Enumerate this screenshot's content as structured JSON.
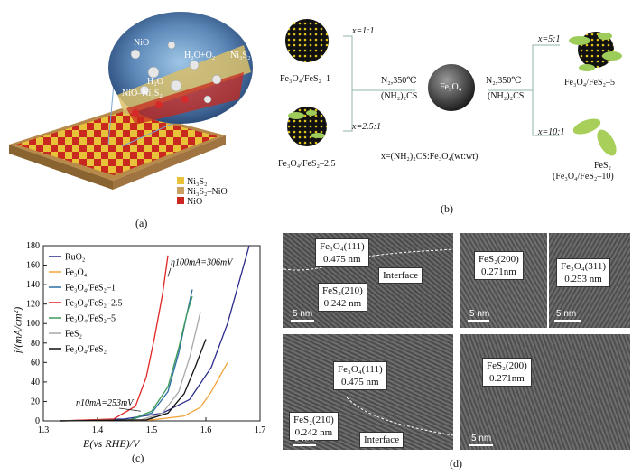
{
  "panel_a": {
    "caption": "(a)",
    "labels": {
      "nio": "NiO",
      "h2o_o2": "H₂O+O₂",
      "ni3s2_top": "Ni₃S₂",
      "h2o": "H₂O",
      "nio_ni3s2": "NiO–Ni₃S₂"
    },
    "legend": [
      "Ni₃S₂",
      "Ni₃S₂–NiO",
      "NiO"
    ],
    "colors": {
      "red": "#c8281e",
      "yellow": "#e8c33a",
      "tan": "#c9a060"
    }
  },
  "panel_b": {
    "caption": "(b)",
    "center": "Fe₃O₄",
    "ratio_def": "x=(NH₂)₂CS:Fe₃O₄(wt:wt)",
    "cond_left_1": "N₂,350℃",
    "cond_left_2": "(NH₂)₂CS",
    "cond_right_1": "N₂,350℃",
    "cond_right_2": "(NH₂)₂CS",
    "x11": "x=1:1",
    "x251": "x=2.5:1",
    "x51": "x=5:1",
    "x101": "x=10:1",
    "p1": "Fe₃O₄/FeS₂–1",
    "p25": "Fe₃O₄/FeS₂–2.5",
    "p5": "Fe₃O₄/FeS₂–5",
    "p10a": "FeS₂",
    "p10b": "(Fe₃O₄/FeS₂–10)"
  },
  "panel_c": {
    "caption": "(c)",
    "chart_data": {
      "type": "line",
      "xlabel": "E(vs RHE)/V",
      "ylabel": "j/(mA/cm²)",
      "xlim": [
        1.3,
        1.7
      ],
      "ylim": [
        0,
        180
      ],
      "xticks": [
        "1.3",
        "1.4",
        "1.5",
        "1.6",
        "1.7"
      ],
      "yticks": [
        "0",
        "20",
        "40",
        "60",
        "80",
        "100",
        "120",
        "140",
        "160",
        "180"
      ],
      "annotations": [
        {
          "text": "η100mA=306mV"
        },
        {
          "text": "η10mA=253mV"
        }
      ],
      "series": [
        {
          "name": "RuO₂",
          "color": "#2b2b8c",
          "x": [
            1.33,
            1.45,
            1.52,
            1.57,
            1.61,
            1.64,
            1.66,
            1.68
          ],
          "y": [
            0,
            2,
            8,
            22,
            55,
            100,
            140,
            180
          ]
        },
        {
          "name": "Fe₃O₄",
          "color": "#f2a43a",
          "x": [
            1.33,
            1.5,
            1.56,
            1.59,
            1.61,
            1.625,
            1.64
          ],
          "y": [
            0,
            1,
            5,
            14,
            30,
            45,
            60
          ]
        },
        {
          "name": "Fe₃O₄/FeS₂–1",
          "color": "#2e6ea0",
          "x": [
            1.33,
            1.46,
            1.5,
            1.53,
            1.55,
            1.565,
            1.575
          ],
          "y": [
            0,
            1,
            8,
            30,
            70,
            110,
            135
          ]
        },
        {
          "name": "Fe₃O₄/FeS₂–2.5",
          "color": "#e02424",
          "x": [
            1.33,
            1.43,
            1.47,
            1.49,
            1.505,
            1.52,
            1.53
          ],
          "y": [
            0,
            2,
            15,
            45,
            85,
            130,
            170
          ]
        },
        {
          "name": "Fe₃O₄/FeS₂–5",
          "color": "#3a9a5a",
          "x": [
            1.33,
            1.46,
            1.5,
            1.53,
            1.55,
            1.565,
            1.575
          ],
          "y": [
            0,
            1,
            10,
            35,
            75,
            110,
            128
          ]
        },
        {
          "name": "FeS₂",
          "color": "#a8a8a8",
          "x": [
            1.33,
            1.48,
            1.52,
            1.55,
            1.57,
            1.59
          ],
          "y": [
            0,
            1,
            8,
            30,
            65,
            112
          ]
        },
        {
          "name": "Fe₃O₄/FeS₂",
          "color": "#111111",
          "x": [
            1.33,
            1.49,
            1.53,
            1.56,
            1.58,
            1.6
          ],
          "y": [
            0,
            1,
            8,
            28,
            55,
            84
          ]
        }
      ]
    }
  },
  "panel_d": {
    "caption": "(d)",
    "scale": "5 nm",
    "tl_a": "Fe₃O₄(111)",
    "tl_b": "0.475 nm",
    "tl_c": "FeS₂(210)",
    "tl_d": "0.242 nm",
    "tl_e": "Interface",
    "tr_a": "FeS₂(200)",
    "tr_b": "0.271nm",
    "tr_c": "Fe₃O₄(311)",
    "tr_d": "0.253 nm",
    "bl_a": "Fe₃O₄(111)",
    "bl_b": "0.475 nm",
    "bl_c": "FeS₂(210)",
    "bl_d": "0.242 nm",
    "bl_e": "Interface",
    "br_a": "FeS₂(200)",
    "br_b": "0.271nm"
  }
}
